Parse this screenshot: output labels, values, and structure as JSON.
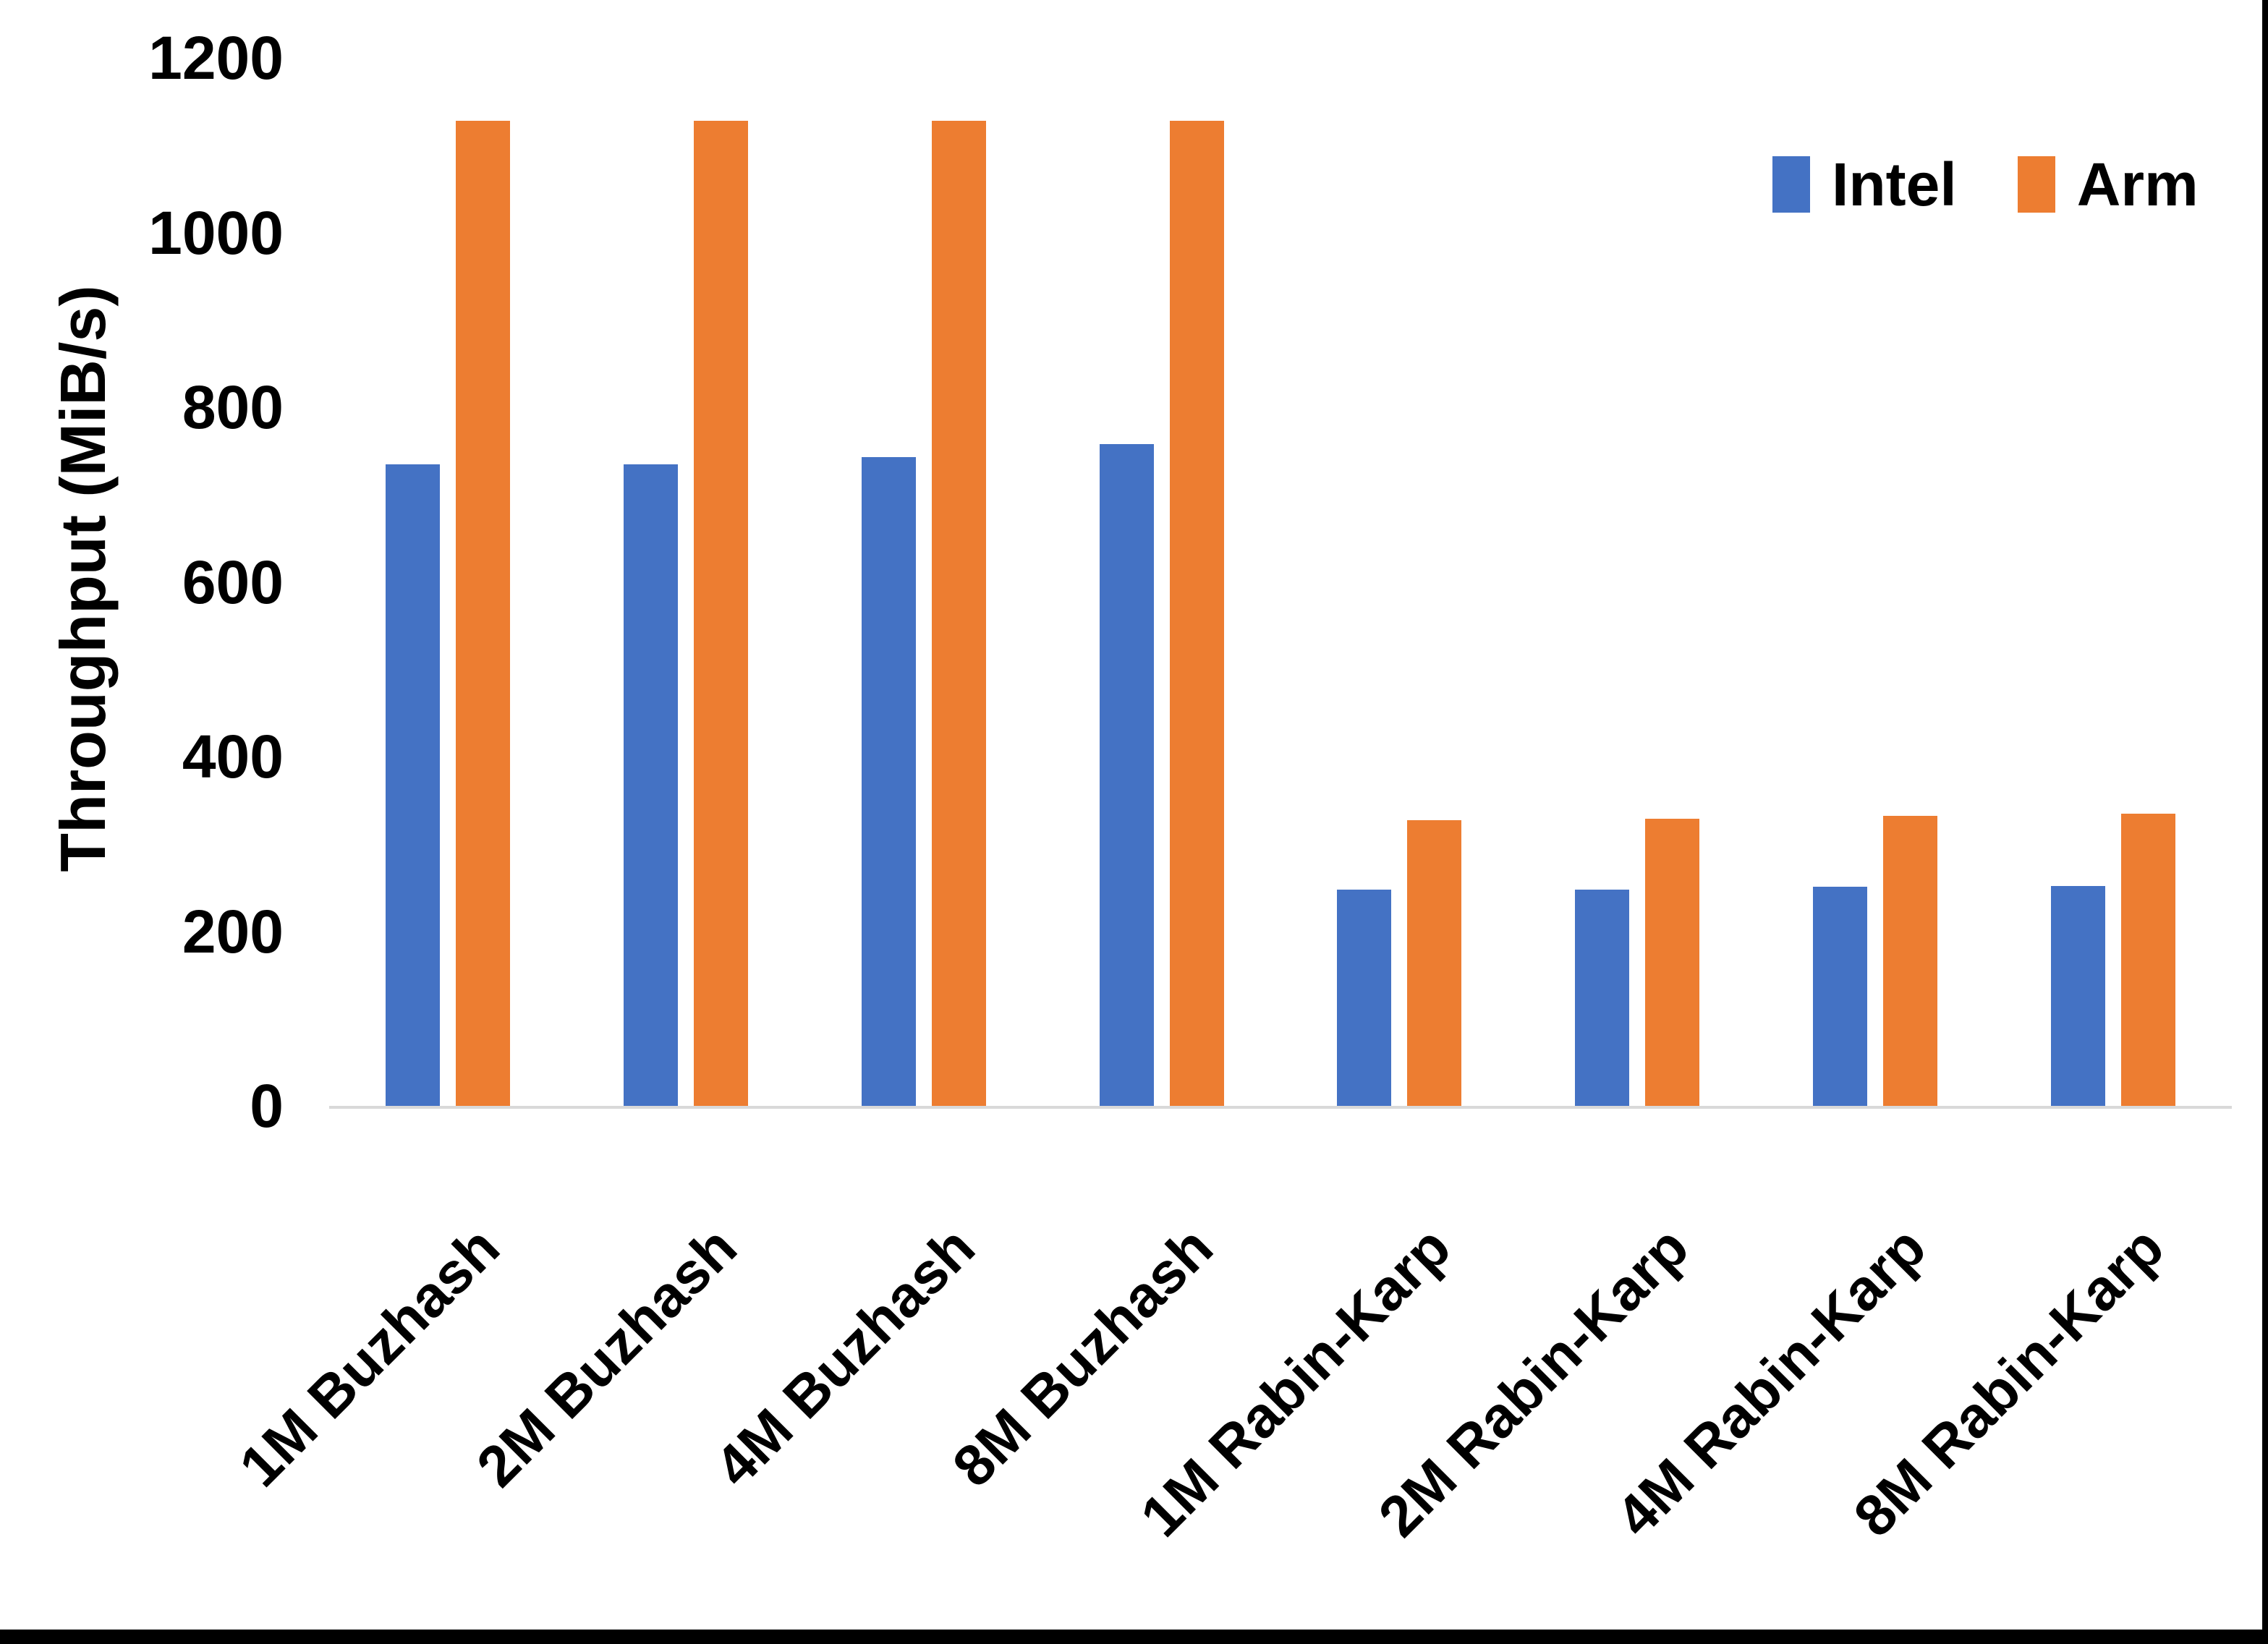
{
  "page": {
    "background": "#FFFFFF",
    "border_color": "#000000"
  },
  "chart_data": {
    "type": "bar",
    "title": "",
    "xlabel": "",
    "ylabel": "Throughput (MiB/s)",
    "ylim": [
      0,
      1200
    ],
    "y_ticks": [
      1200,
      1000,
      800,
      600,
      400,
      200,
      0
    ],
    "grid": false,
    "legend_position": "top-right",
    "axis_line_color": "#D9D9D9",
    "text_color": "#000000",
    "categories": [
      "1M Buzhash",
      "2M Buzhash",
      "4M Buzhash",
      "8M Buzhash",
      "1M Rabin-Karp",
      "2M Rabin-Karp",
      "4M Rabin-Karp",
      "8M Rabin-Karp"
    ],
    "series": [
      {
        "name": "Intel",
        "color": "#4472C4",
        "values": [
          735,
          735,
          743,
          758,
          248,
          248,
          251,
          252
        ]
      },
      {
        "name": "Arm",
        "color": "#ED7D31",
        "values": [
          1128,
          1128,
          1128,
          1128,
          327,
          329,
          332,
          335
        ]
      }
    ]
  }
}
